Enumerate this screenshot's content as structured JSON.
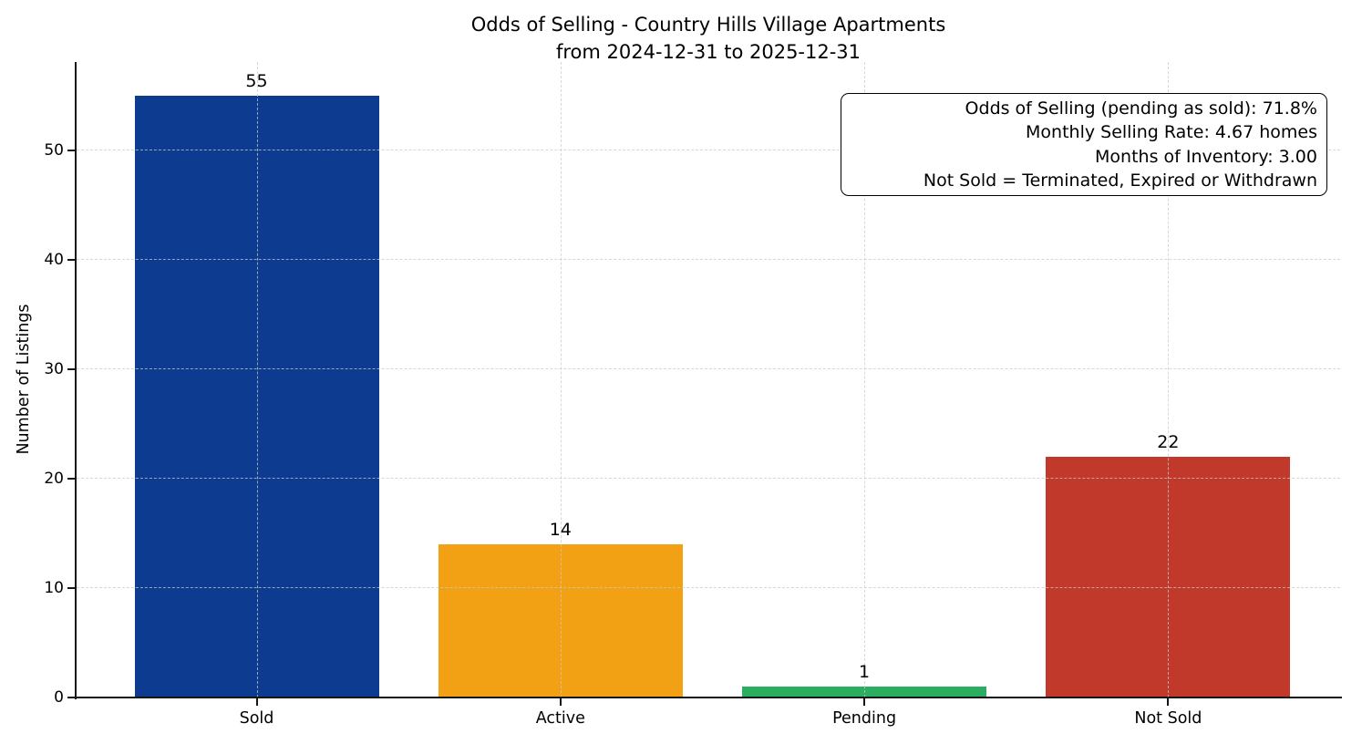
{
  "title": {
    "line1": "Odds of Selling - Country Hills Village Apartments",
    "line2": "from 2024-12-31 to 2025-12-31"
  },
  "ylabel": "Number of Listings",
  "annotation": {
    "lines": [
      "Odds of Selling (pending as sold): 71.8%",
      "Monthly Selling Rate: 4.67 homes",
      "Months of Inventory: 3.00",
      "Not Sold = Terminated, Expired or Withdrawn"
    ]
  },
  "colors": {
    "sold": "#0d3b8f",
    "active": "#f2a014",
    "pending": "#2bae60",
    "not_sold": "#c0392b",
    "grid": "#cacaca",
    "spine": "#151515",
    "text": "#000000",
    "background": "#ffffff"
  },
  "chart_data": {
    "type": "bar",
    "title": "Odds of Selling - Country Hills Village Apartments from 2024-12-31 to 2025-12-31",
    "categories": [
      "Sold",
      "Active",
      "Pending",
      "Not Sold"
    ],
    "values": [
      55,
      14,
      1,
      22
    ],
    "bar_value_labels": [
      "55",
      "14",
      "1",
      "22"
    ],
    "bar_colors": [
      "#0d3b8f",
      "#f2a014",
      "#2bae60",
      "#c0392b"
    ],
    "xlabel": "",
    "ylabel": "Number of Listings",
    "ylim": [
      0,
      58
    ],
    "yticks": [
      0,
      10,
      20,
      30,
      40,
      50
    ],
    "grid": "dashed, both axes",
    "legend": null,
    "annotation_text": "Odds of Selling (pending as sold): 71.8% | Monthly Selling Rate: 4.67 homes | Months of Inventory: 3.00 | Not Sold = Terminated, Expired or Withdrawn"
  }
}
